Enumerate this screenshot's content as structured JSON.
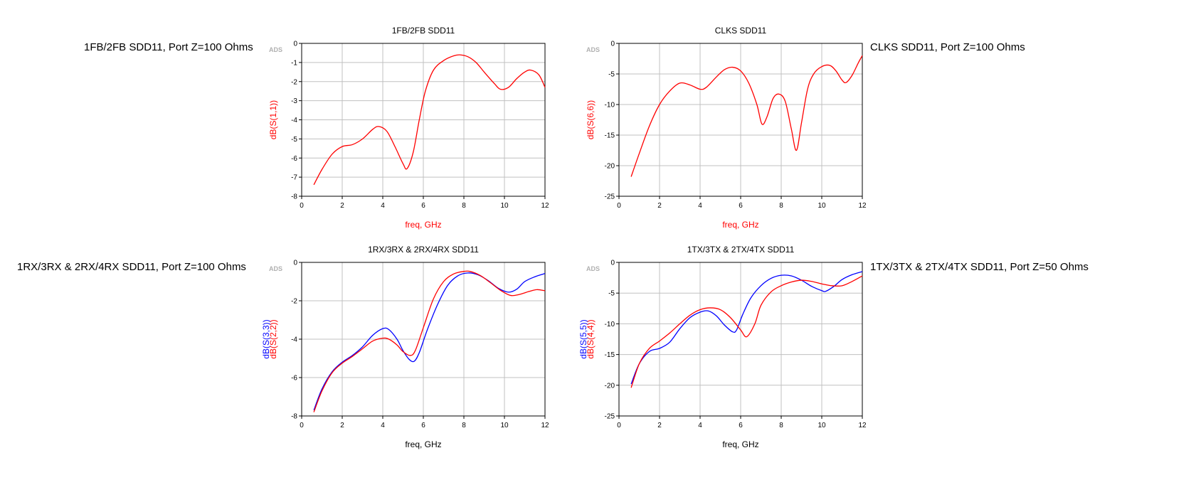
{
  "captions": {
    "p1": "1FB/2FB SDD11, Port Z=100 Ohms",
    "p2": "CLKS SDD11, Port Z=100 Ohms",
    "p3": "1RX/3RX & 2RX/4RX SDD11, Port Z=100 Ohms",
    "p4": "1TX/3TX & 2TX/4TX SDD11, Port Z=50 Ohms"
  },
  "colors": {
    "red": "#ff0000",
    "blue": "#0000ff",
    "grid": "#c0c0c0",
    "frame": "#000000",
    "watermark": "#b0b0b0"
  },
  "chart_data": [
    {
      "type": "line",
      "title": "1FB/2FB SDD11",
      "xlabel": "freq, GHz",
      "xlabel_color": "red",
      "watermark": "ADS",
      "xlim": [
        0,
        12
      ],
      "ylim": [
        -8,
        0
      ],
      "xticks": [
        0,
        2,
        4,
        6,
        8,
        10,
        12
      ],
      "yticks": [
        0,
        -1,
        -2,
        -3,
        -4,
        -5,
        -6,
        -7,
        -8
      ],
      "series": [
        {
          "name": "dB(S(1,1))",
          "color": "red",
          "x": [
            0.6,
            1.0,
            1.5,
            2.0,
            2.5,
            3.0,
            3.5,
            3.8,
            4.2,
            4.6,
            5.0,
            5.2,
            5.5,
            5.8,
            6.1,
            6.5,
            7.0,
            7.5,
            7.8,
            8.2,
            8.6,
            9.0,
            9.5,
            9.8,
            10.2,
            10.6,
            11.0,
            11.3,
            11.7,
            12.0
          ],
          "y": [
            -7.4,
            -6.6,
            -5.8,
            -5.4,
            -5.3,
            -5.0,
            -4.5,
            -4.35,
            -4.6,
            -5.4,
            -6.3,
            -6.55,
            -5.7,
            -4.0,
            -2.5,
            -1.4,
            -0.9,
            -0.65,
            -0.6,
            -0.7,
            -1.0,
            -1.5,
            -2.1,
            -2.4,
            -2.3,
            -1.85,
            -1.5,
            -1.4,
            -1.65,
            -2.3
          ]
        }
      ]
    },
    {
      "type": "line",
      "title": "CLKS SDD11",
      "xlabel": "freq, GHz",
      "xlabel_color": "red",
      "watermark": "ADS",
      "xlim": [
        0,
        12
      ],
      "ylim": [
        -25,
        0
      ],
      "xticks": [
        0,
        2,
        4,
        6,
        8,
        10,
        12
      ],
      "yticks": [
        0,
        -5,
        -10,
        -15,
        -20,
        -25
      ],
      "series": [
        {
          "name": "dB(S(6,6))",
          "color": "red",
          "x": [
            0.6,
            1.0,
            1.5,
            2.0,
            2.5,
            3.0,
            3.5,
            4.0,
            4.3,
            4.8,
            5.2,
            5.6,
            6.0,
            6.4,
            6.8,
            7.05,
            7.3,
            7.6,
            7.9,
            8.2,
            8.5,
            8.75,
            9.0,
            9.3,
            9.6,
            10.0,
            10.4,
            10.7,
            11.0,
            11.2,
            11.5,
            11.8,
            12.0
          ],
          "y": [
            -21.8,
            -18.0,
            -13.5,
            -10.0,
            -7.8,
            -6.5,
            -6.8,
            -7.5,
            -7.2,
            -5.5,
            -4.3,
            -3.9,
            -4.5,
            -6.5,
            -10.0,
            -13.2,
            -12.0,
            -9.0,
            -8.3,
            -9.5,
            -14.0,
            -17.5,
            -13.0,
            -7.5,
            -5.0,
            -3.8,
            -3.6,
            -4.5,
            -6.0,
            -6.4,
            -5.2,
            -3.2,
            -2.0
          ]
        }
      ]
    },
    {
      "type": "line",
      "title": "1RX/3RX & 2RX/4RX SDD11",
      "xlabel": "freq, GHz",
      "xlabel_color": "black",
      "watermark": "ADS",
      "xlim": [
        0,
        12
      ],
      "ylim": [
        -8,
        0
      ],
      "xticks": [
        0,
        2,
        4,
        6,
        8,
        10,
        12
      ],
      "yticks": [
        0,
        -2,
        -4,
        -6,
        -8
      ],
      "series": [
        {
          "name": "dB(S(3,3))",
          "color": "blue",
          "x": [
            0.6,
            1.0,
            1.5,
            2.0,
            2.5,
            3.0,
            3.5,
            4.0,
            4.3,
            4.7,
            5.0,
            5.3,
            5.55,
            5.8,
            6.2,
            6.7,
            7.2,
            7.7,
            8.2,
            8.7,
            9.2,
            9.7,
            10.2,
            10.6,
            11.0,
            11.5,
            12.0
          ],
          "y": [
            -7.7,
            -6.6,
            -5.7,
            -5.2,
            -4.85,
            -4.4,
            -3.8,
            -3.45,
            -3.5,
            -4.0,
            -4.6,
            -5.05,
            -5.15,
            -4.7,
            -3.5,
            -2.2,
            -1.2,
            -0.7,
            -0.55,
            -0.65,
            -0.95,
            -1.35,
            -1.55,
            -1.4,
            -1.0,
            -0.75,
            -0.58
          ]
        },
        {
          "name": "dB(S(2,2))",
          "color": "red",
          "x": [
            0.6,
            1.0,
            1.5,
            2.0,
            2.5,
            3.0,
            3.5,
            4.0,
            4.3,
            4.7,
            5.0,
            5.35,
            5.6,
            6.0,
            6.5,
            7.0,
            7.5,
            8.0,
            8.3,
            8.8,
            9.3,
            9.8,
            10.3,
            10.7,
            11.2,
            11.6,
            12.0
          ],
          "y": [
            -7.8,
            -6.7,
            -5.75,
            -5.25,
            -4.9,
            -4.5,
            -4.1,
            -3.95,
            -4.0,
            -4.3,
            -4.65,
            -4.85,
            -4.6,
            -3.4,
            -1.9,
            -1.0,
            -0.6,
            -0.47,
            -0.47,
            -0.68,
            -1.05,
            -1.45,
            -1.72,
            -1.68,
            -1.52,
            -1.42,
            -1.48
          ]
        }
      ]
    },
    {
      "type": "line",
      "title": "1TX/3TX & 2TX/4TX SDD11",
      "xlabel": "freq, GHz",
      "xlabel_color": "black",
      "watermark": "ADS",
      "xlim": [
        0,
        12
      ],
      "ylim": [
        -25,
        0
      ],
      "xticks": [
        0,
        2,
        4,
        6,
        8,
        10,
        12
      ],
      "yticks": [
        0,
        -5,
        -10,
        -15,
        -20,
        -25
      ],
      "series": [
        {
          "name": "dB(S(5,5))",
          "color": "blue",
          "x": [
            0.6,
            1.0,
            1.5,
            2.0,
            2.5,
            3.0,
            3.5,
            4.0,
            4.4,
            4.8,
            5.2,
            5.6,
            5.8,
            6.1,
            6.5,
            7.0,
            7.5,
            8.0,
            8.5,
            9.0,
            9.5,
            10.0,
            10.2,
            10.6,
            11.0,
            11.5,
            12.0
          ],
          "y": [
            -19.8,
            -16.5,
            -14.5,
            -14.0,
            -13.0,
            -10.8,
            -9.0,
            -8.1,
            -7.9,
            -8.7,
            -10.2,
            -11.3,
            -11.0,
            -8.5,
            -5.8,
            -3.8,
            -2.6,
            -2.1,
            -2.2,
            -2.9,
            -3.9,
            -4.6,
            -4.7,
            -3.9,
            -2.8,
            -2.0,
            -1.5
          ]
        },
        {
          "name": "dB(S(4,4))",
          "color": "red",
          "x": [
            0.6,
            1.0,
            1.5,
            2.0,
            2.5,
            3.0,
            3.5,
            4.0,
            4.5,
            5.0,
            5.5,
            6.0,
            6.3,
            6.7,
            7.0,
            7.5,
            8.0,
            8.5,
            9.0,
            9.5,
            10.0,
            10.5,
            11.0,
            11.5,
            12.0
          ],
          "y": [
            -20.4,
            -16.5,
            -14.0,
            -12.8,
            -11.5,
            -10.0,
            -8.6,
            -7.7,
            -7.4,
            -7.7,
            -9.0,
            -11.0,
            -12.1,
            -10.0,
            -7.0,
            -4.8,
            -3.8,
            -3.2,
            -2.9,
            -3.1,
            -3.5,
            -3.8,
            -3.8,
            -3.1,
            -2.2
          ]
        }
      ]
    }
  ]
}
